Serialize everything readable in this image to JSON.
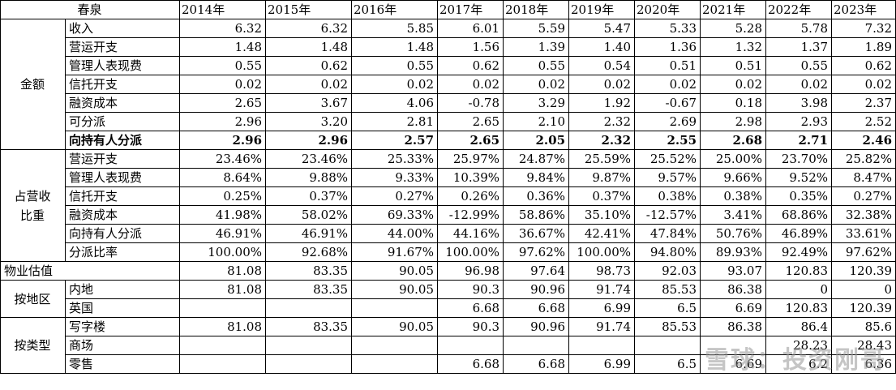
{
  "title": "春泉",
  "years": [
    "2014年",
    "2015年",
    "2016年",
    "2017年",
    "2018年",
    "2019年",
    "2020年",
    "2021年",
    "2022年",
    "2023年"
  ],
  "groups": {
    "amount": "金额",
    "ratio_line1": "占营收",
    "ratio_line2": "比重",
    "region": "按地区",
    "type": "按类型"
  },
  "amount_rows": [
    {
      "label": "收入",
      "values": [
        "6.32",
        "6.32",
        "5.85",
        "6.01",
        "5.59",
        "5.47",
        "5.33",
        "5.28",
        "5.78",
        "7.32"
      ]
    },
    {
      "label": "营运开支",
      "values": [
        "1.48",
        "1.48",
        "1.48",
        "1.56",
        "1.39",
        "1.40",
        "1.36",
        "1.32",
        "1.37",
        "1.89"
      ]
    },
    {
      "label": "管理人表现费",
      "values": [
        "0.55",
        "0.62",
        "0.55",
        "0.62",
        "0.55",
        "0.54",
        "0.51",
        "0.51",
        "0.55",
        "0.62"
      ]
    },
    {
      "label": "信托开支",
      "values": [
        "0.02",
        "0.02",
        "0.02",
        "0.02",
        "0.02",
        "0.02",
        "0.02",
        "0.02",
        "0.02",
        "0.02"
      ]
    },
    {
      "label": "融资成本",
      "values": [
        "2.65",
        "3.67",
        "4.06",
        "-0.78",
        "3.29",
        "1.92",
        "-0.67",
        "0.18",
        "3.98",
        "2.37"
      ]
    },
    {
      "label": "可分派",
      "values": [
        "2.96",
        "3.20",
        "2.81",
        "2.65",
        "2.10",
        "2.32",
        "2.69",
        "2.98",
        "2.93",
        "2.52"
      ]
    },
    {
      "label": "向持有人分派",
      "values": [
        "2.96",
        "2.96",
        "2.57",
        "2.65",
        "2.05",
        "2.32",
        "2.55",
        "2.68",
        "2.71",
        "2.46"
      ]
    }
  ],
  "ratio_rows": [
    {
      "label": "营运开支",
      "values": [
        "23.46%",
        "23.46%",
        "25.33%",
        "25.97%",
        "24.87%",
        "25.59%",
        "25.52%",
        "25.00%",
        "23.70%",
        "25.82%"
      ]
    },
    {
      "label": "管理人表现费",
      "values": [
        "8.64%",
        "9.88%",
        "9.33%",
        "10.39%",
        "9.84%",
        "9.87%",
        "9.57%",
        "9.66%",
        "9.52%",
        "8.47%"
      ]
    },
    {
      "label": "信托开支",
      "values": [
        "0.25%",
        "0.37%",
        "0.27%",
        "0.26%",
        "0.36%",
        "0.37%",
        "0.38%",
        "0.38%",
        "0.35%",
        "0.27%"
      ]
    },
    {
      "label": "融资成本",
      "values": [
        "41.98%",
        "58.02%",
        "69.33%",
        "-12.99%",
        "58.86%",
        "35.10%",
        "-12.57%",
        "3.41%",
        "68.86%",
        "32.38%"
      ]
    },
    {
      "label": "向持有人分派",
      "values": [
        "46.91%",
        "46.91%",
        "44.00%",
        "44.16%",
        "36.67%",
        "42.41%",
        "47.84%",
        "50.76%",
        "46.89%",
        "33.61%"
      ]
    },
    {
      "label": "分派比率",
      "values": [
        "100.00%",
        "92.68%",
        "91.67%",
        "100.00%",
        "97.62%",
        "100.00%",
        "94.80%",
        "89.93%",
        "92.49%",
        "97.62%"
      ]
    }
  ],
  "valuation_row": {
    "label": "物业估值",
    "values": [
      "81.08",
      "83.35",
      "90.05",
      "96.98",
      "97.64",
      "98.73",
      "92.03",
      "93.07",
      "120.83",
      "120.39"
    ]
  },
  "region_rows": [
    {
      "label": "内地",
      "values": [
        "81.08",
        "83.35",
        "90.05",
        "90.3",
        "90.96",
        "91.74",
        "85.53",
        "86.38",
        "0",
        "0"
      ]
    },
    {
      "label": "英国",
      "values": [
        "",
        "",
        "",
        "6.68",
        "6.68",
        "6.99",
        "",
        "6.69",
        "120.83",
        "120.39"
      ]
    }
  ],
  "region_merged": {
    "label": "6.5"
  },
  "type_rows": [
    {
      "label": "写字楼",
      "values": [
        "81.08",
        "83.35",
        "90.05",
        "90.3",
        "90.96",
        "91.74",
        "85.53",
        "86.38",
        "86.4",
        "85.6"
      ]
    },
    {
      "label": "商场",
      "values": [
        "",
        "",
        "",
        "",
        "",
        "",
        "",
        "",
        "28.23",
        "28.43"
      ]
    },
    {
      "label": "零售",
      "values": [
        "",
        "",
        "",
        "6.68",
        "6.68",
        "6.99",
        "6.5",
        "6.69",
        "6.2",
        "6.36"
      ]
    }
  ],
  "watermark": "雪球：投资刚哥"
}
